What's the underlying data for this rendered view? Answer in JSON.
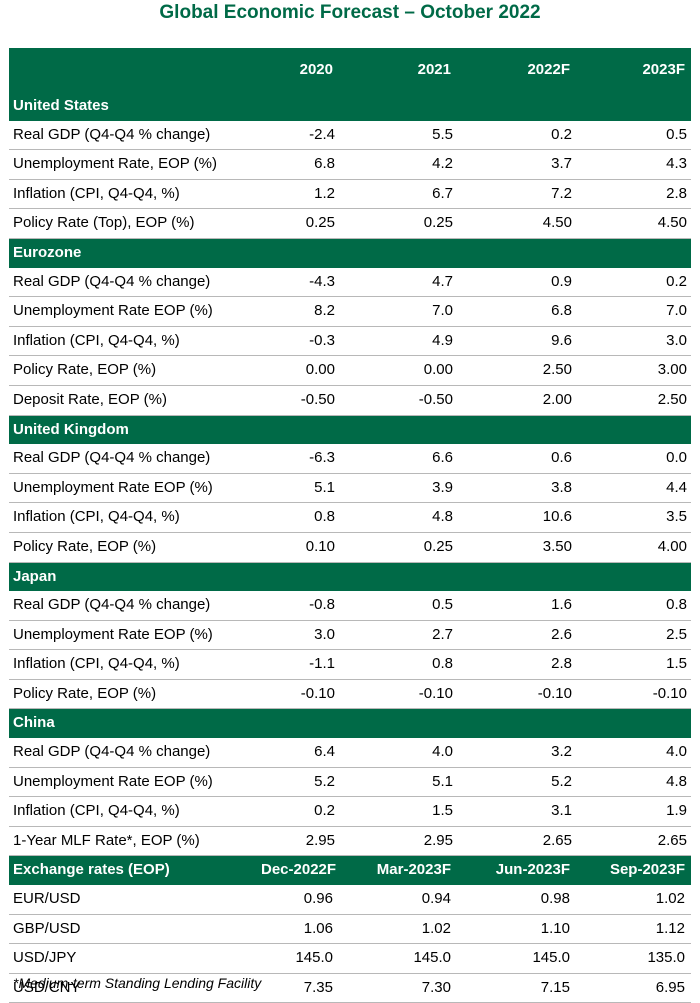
{
  "title": "Global Economic Forecast – October 2022",
  "columns": [
    "",
    "2020",
    "2021",
    "2022F",
    "2023F"
  ],
  "sections": [
    {
      "name": "United States",
      "rows": [
        {
          "label": "Real GDP (Q4-Q4 % change)",
          "values": [
            "-2.4",
            "5.5",
            "0.2",
            "0.5"
          ]
        },
        {
          "label": "Unemployment Rate, EOP (%)",
          "values": [
            "6.8",
            "4.2",
            "3.7",
            "4.3"
          ]
        },
        {
          "label": "Inflation (CPI, Q4-Q4, %)",
          "values": [
            "1.2",
            "6.7",
            "7.2",
            "2.8"
          ]
        },
        {
          "label": "Policy Rate (Top), EOP (%)",
          "values": [
            "0.25",
            "0.25",
            "4.50",
            "4.50"
          ]
        }
      ]
    },
    {
      "name": "Eurozone",
      "rows": [
        {
          "label": "Real GDP (Q4-Q4 % change)",
          "values": [
            "-4.3",
            "4.7",
            "0.9",
            "0.2"
          ]
        },
        {
          "label": "Unemployment Rate EOP (%)",
          "values": [
            "8.2",
            "7.0",
            "6.8",
            "7.0"
          ]
        },
        {
          "label": "Inflation (CPI, Q4-Q4, %)",
          "values": [
            "-0.3",
            "4.9",
            "9.6",
            "3.0"
          ]
        },
        {
          "label": "Policy Rate, EOP (%)",
          "values": [
            "0.00",
            "0.00",
            "2.50",
            "3.00"
          ]
        },
        {
          "label": "Deposit Rate, EOP (%)",
          "values": [
            "-0.50",
            "-0.50",
            "2.00",
            "2.50"
          ]
        }
      ]
    },
    {
      "name": "United Kingdom",
      "rows": [
        {
          "label": "Real GDP (Q4-Q4 % change)",
          "values": [
            "-6.3",
            "6.6",
            "0.6",
            "0.0"
          ]
        },
        {
          "label": "Unemployment Rate EOP (%)",
          "values": [
            "5.1",
            "3.9",
            "3.8",
            "4.4"
          ]
        },
        {
          "label": "Inflation (CPI, Q4-Q4, %)",
          "values": [
            "0.8",
            "4.8",
            "10.6",
            "3.5"
          ]
        },
        {
          "label": "Policy Rate, EOP (%)",
          "values": [
            "0.10",
            "0.25",
            "3.50",
            "4.00"
          ]
        }
      ]
    },
    {
      "name": "Japan",
      "rows": [
        {
          "label": "Real GDP (Q4-Q4 % change)",
          "values": [
            "-0.8",
            "0.5",
            "1.6",
            "0.8"
          ]
        },
        {
          "label": "Unemployment Rate EOP (%)",
          "values": [
            "3.0",
            "2.7",
            "2.6",
            "2.5"
          ]
        },
        {
          "label": "Inflation (CPI, Q4-Q4, %)",
          "values": [
            "-1.1",
            "0.8",
            "2.8",
            "1.5"
          ]
        },
        {
          "label": "Policy Rate, EOP (%)",
          "values": [
            "-0.10",
            "-0.10",
            "-0.10",
            "-0.10"
          ]
        }
      ]
    },
    {
      "name": "China",
      "rows": [
        {
          "label": "Real GDP (Q4-Q4 % change)",
          "values": [
            "6.4",
            "4.0",
            "3.2",
            "4.0"
          ]
        },
        {
          "label": "Unemployment Rate EOP (%)",
          "values": [
            "5.2",
            "5.1",
            "5.2",
            "4.8"
          ]
        },
        {
          "label": "Inflation (CPI, Q4-Q4, %)",
          "values": [
            "0.2",
            "1.5",
            "3.1",
            "1.9"
          ]
        },
        {
          "label": "1-Year MLF Rate*, EOP (%)",
          "values": [
            "2.95",
            "2.95",
            "2.65",
            "2.65"
          ]
        }
      ]
    }
  ],
  "fx": {
    "header": [
      "Exchange rates (EOP)",
      "Dec-2022F",
      "Mar-2023F",
      "Jun-2023F",
      "Sep-2023F"
    ],
    "rows": [
      {
        "label": "EUR/USD",
        "values": [
          "0.96",
          "0.94",
          "0.98",
          "1.02"
        ]
      },
      {
        "label": "GBP/USD",
        "values": [
          "1.06",
          "1.02",
          "1.10",
          "1.12"
        ]
      },
      {
        "label": "USD/JPY",
        "values": [
          "145.0",
          "145.0",
          "145.0",
          "135.0"
        ]
      },
      {
        "label": "USD/CNY",
        "values": [
          "7.35",
          "7.30",
          "7.15",
          "6.95"
        ]
      }
    ]
  },
  "footnote": "*Medium-term Standing Lending Facility",
  "colors": {
    "accent": "#006a47",
    "rule": "#b8b8b8"
  }
}
